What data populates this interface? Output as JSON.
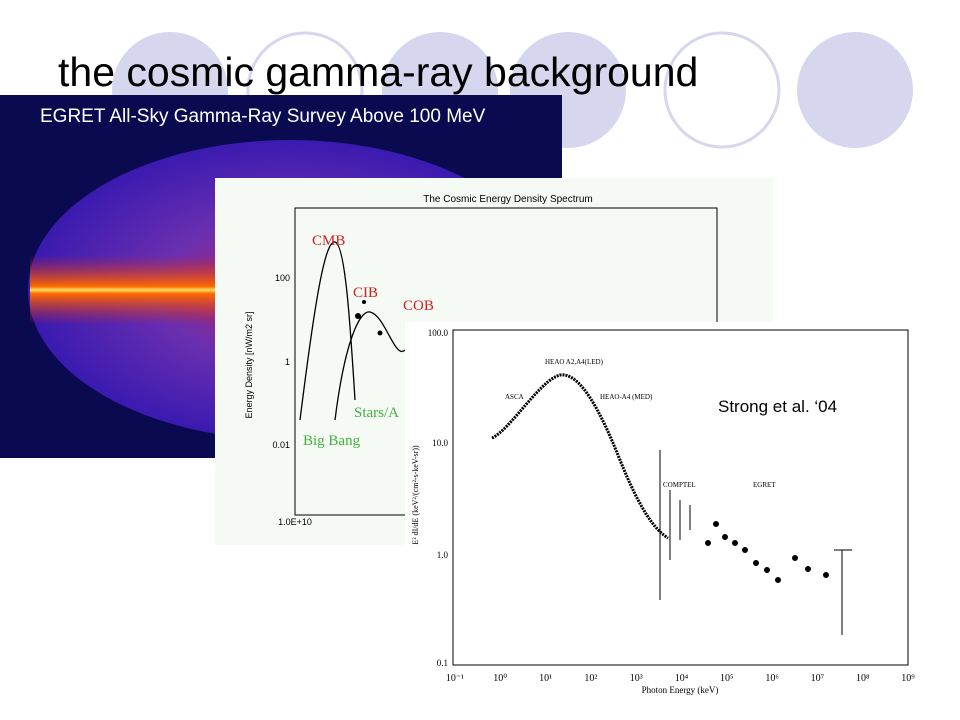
{
  "slide": {
    "title": "the cosmic gamma-ray background",
    "citation": "Strong et al. ‘04"
  },
  "egret_map": {
    "title": "EGRET All-Sky Gamma-Ray Survey Above 100 MeV"
  },
  "energy_density_plot": {
    "title": "The Cosmic Energy Density Spectrum",
    "y_label": "Energy Density [nW/m2 sr]",
    "y_ticks": [
      "100",
      "1",
      "0.01"
    ],
    "x_ticks": [
      "1.0E+10"
    ],
    "labels": [
      "CMB",
      "CIB",
      "COB",
      "Stars/A",
      "Big Bang"
    ]
  },
  "gamma_plot": {
    "x_label": "Photon Energy (keV)",
    "y_label": "E² dI/dE (keV²/(cm²-s-keV-sr))",
    "y_ticks": [
      "100.0",
      "10.0",
      "1.0",
      "0.1"
    ],
    "x_ticks": [
      "10⁻¹",
      "10⁰",
      "10¹",
      "10²",
      "10³",
      "10⁴",
      "10⁵",
      "10⁶",
      "10⁷",
      "10⁸",
      "10⁹"
    ],
    "labels": [
      "ASCA",
      "HEAO A2,A4(LED)",
      "HEAO-A4 (MED)",
      "COMPTEL",
      "EGRET"
    ]
  }
}
